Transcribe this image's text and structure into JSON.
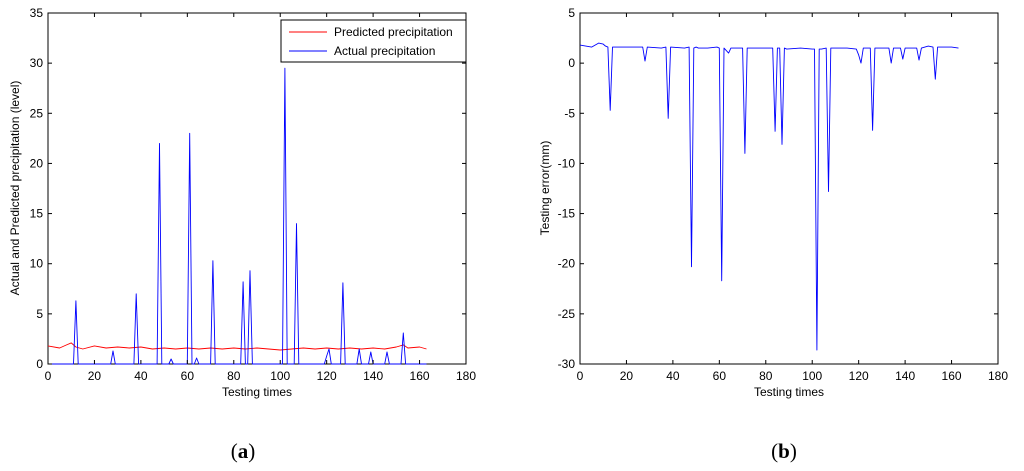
{
  "chart_data": [
    {
      "type": "line",
      "panel_label": "(a)",
      "panel_letter": "a",
      "xlabel": "Testing times",
      "ylabel": "Actual and Predicted precipitation (level)",
      "xlim": [
        0,
        180
      ],
      "ylim": [
        0,
        35
      ],
      "xticks": [
        0,
        20,
        40,
        60,
        80,
        100,
        120,
        140,
        160,
        180
      ],
      "yticks": [
        0,
        5,
        10,
        15,
        20,
        25,
        30,
        35
      ],
      "legend_position": "top-right",
      "series": [
        {
          "name": "Predicted precipitation",
          "color": "#ff0000",
          "x": [
            0,
            5,
            8,
            10,
            12,
            15,
            20,
            25,
            30,
            35,
            40,
            45,
            50,
            55,
            60,
            65,
            70,
            75,
            80,
            85,
            90,
            95,
            100,
            105,
            110,
            115,
            120,
            125,
            130,
            135,
            140,
            145,
            150,
            153,
            155,
            160,
            163
          ],
          "values": [
            1.8,
            1.6,
            1.9,
            2.1,
            1.7,
            1.5,
            1.8,
            1.6,
            1.7,
            1.6,
            1.7,
            1.5,
            1.6,
            1.5,
            1.6,
            1.5,
            1.6,
            1.5,
            1.6,
            1.5,
            1.6,
            1.5,
            1.4,
            1.5,
            1.6,
            1.5,
            1.6,
            1.5,
            1.6,
            1.5,
            1.6,
            1.5,
            1.7,
            1.9,
            1.6,
            1.7,
            1.5
          ]
        },
        {
          "name": "Actual precipitation",
          "color": "#0000ff",
          "x": [
            0,
            11,
            12,
            13,
            27,
            28,
            29,
            37,
            38,
            39,
            47,
            48,
            49,
            50,
            52,
            53,
            54,
            60,
            61,
            62,
            63,
            64,
            65,
            70,
            71,
            72,
            83,
            84,
            85,
            86,
            87,
            88,
            89,
            101,
            102,
            103,
            106,
            107,
            108,
            119,
            120,
            121,
            122,
            126,
            127,
            128,
            133,
            134,
            135,
            138,
            139,
            140,
            145,
            146,
            147,
            152,
            153,
            154,
            163
          ],
          "values": [
            0,
            0,
            6.3,
            0,
            0,
            1.3,
            0,
            0,
            7.0,
            0,
            0,
            22.0,
            0,
            0,
            0,
            0.5,
            0,
            0,
            23.0,
            0,
            0,
            0.6,
            0,
            0,
            10.3,
            0,
            0,
            8.2,
            0,
            0,
            9.3,
            0,
            0,
            0,
            29.5,
            0,
            0,
            14.0,
            0,
            0,
            0.8,
            1.5,
            0,
            0,
            8.1,
            0,
            0,
            1.5,
            0,
            0,
            1.2,
            0,
            0,
            1.2,
            0,
            0,
            3.1,
            0,
            0
          ]
        }
      ]
    },
    {
      "type": "line",
      "panel_label": "(b)",
      "panel_letter": "b",
      "xlabel": "Testing times",
      "ylabel": "Testing error(mm)",
      "xlim": [
        0,
        180
      ],
      "ylim": [
        -30,
        5
      ],
      "xticks": [
        0,
        20,
        40,
        60,
        80,
        100,
        120,
        140,
        160,
        180
      ],
      "yticks": [
        5,
        0,
        -5,
        -10,
        -15,
        -20,
        -25,
        -30
      ],
      "series": [
        {
          "color": "#0000ff",
          "x": [
            0,
            5,
            8,
            10,
            11,
            12,
            13,
            14,
            20,
            27,
            28,
            29,
            35,
            37,
            38,
            39,
            45,
            47,
            48,
            49,
            50,
            51,
            55,
            59,
            60,
            61,
            62,
            64,
            65,
            70,
            71,
            72,
            80,
            83,
            84,
            85,
            86,
            87,
            88,
            89,
            95,
            100,
            101,
            102,
            103,
            104,
            106,
            107,
            108,
            109,
            115,
            119,
            120,
            121,
            122,
            125,
            126,
            127,
            128,
            133,
            134,
            135,
            138,
            139,
            140,
            145,
            146,
            147,
            150,
            152,
            153,
            154,
            160,
            163
          ],
          "values": [
            1.8,
            1.6,
            2.0,
            1.9,
            1.7,
            1.6,
            -4.7,
            1.6,
            1.6,
            1.6,
            0.2,
            1.6,
            1.5,
            1.6,
            -5.5,
            1.6,
            1.5,
            1.6,
            -20.3,
            1.5,
            1.6,
            1.5,
            1.5,
            1.6,
            1.5,
            -21.7,
            1.5,
            1.0,
            1.5,
            1.5,
            -9.0,
            1.5,
            1.5,
            1.5,
            -6.8,
            1.5,
            1.5,
            -8.1,
            1.5,
            1.4,
            1.5,
            1.4,
            1.4,
            -28.6,
            1.4,
            1.4,
            1.5,
            -12.8,
            1.5,
            1.5,
            1.5,
            1.4,
            0.8,
            0.0,
            1.5,
            1.5,
            -6.7,
            1.5,
            1.5,
            1.5,
            0.0,
            1.5,
            1.5,
            0.4,
            1.5,
            1.5,
            0.3,
            1.5,
            1.7,
            1.6,
            -1.6,
            1.6,
            1.6,
            1.5
          ]
        }
      ]
    }
  ]
}
